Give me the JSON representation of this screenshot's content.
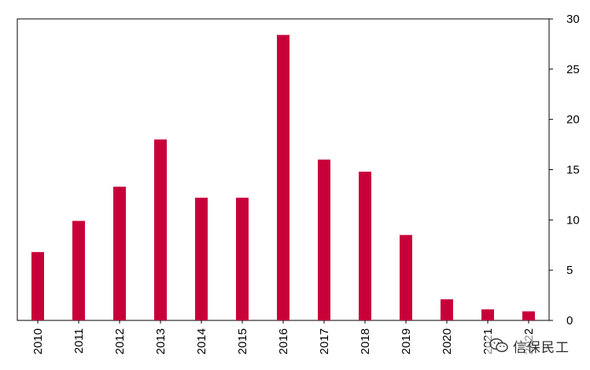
{
  "chart_data": {
    "type": "bar",
    "categories": [
      "2010",
      "2011",
      "2012",
      "2013",
      "2014",
      "2015",
      "2016",
      "2017",
      "2018",
      "2019",
      "2020",
      "2021",
      "2022"
    ],
    "values": [
      6.8,
      9.9,
      13.3,
      18.0,
      12.2,
      12.2,
      28.4,
      16.0,
      14.8,
      8.5,
      2.1,
      1.1,
      0.9
    ],
    "ylim": [
      0,
      30
    ],
    "yticks": [
      0,
      5,
      10,
      15,
      20,
      25,
      30
    ],
    "yaxis_position": "right",
    "grid": false,
    "bar_color": "#C8003A",
    "title": "",
    "xlabel": "",
    "ylabel": ""
  },
  "watermark": {
    "text": "信保民工",
    "icon": "wechat-icon"
  }
}
